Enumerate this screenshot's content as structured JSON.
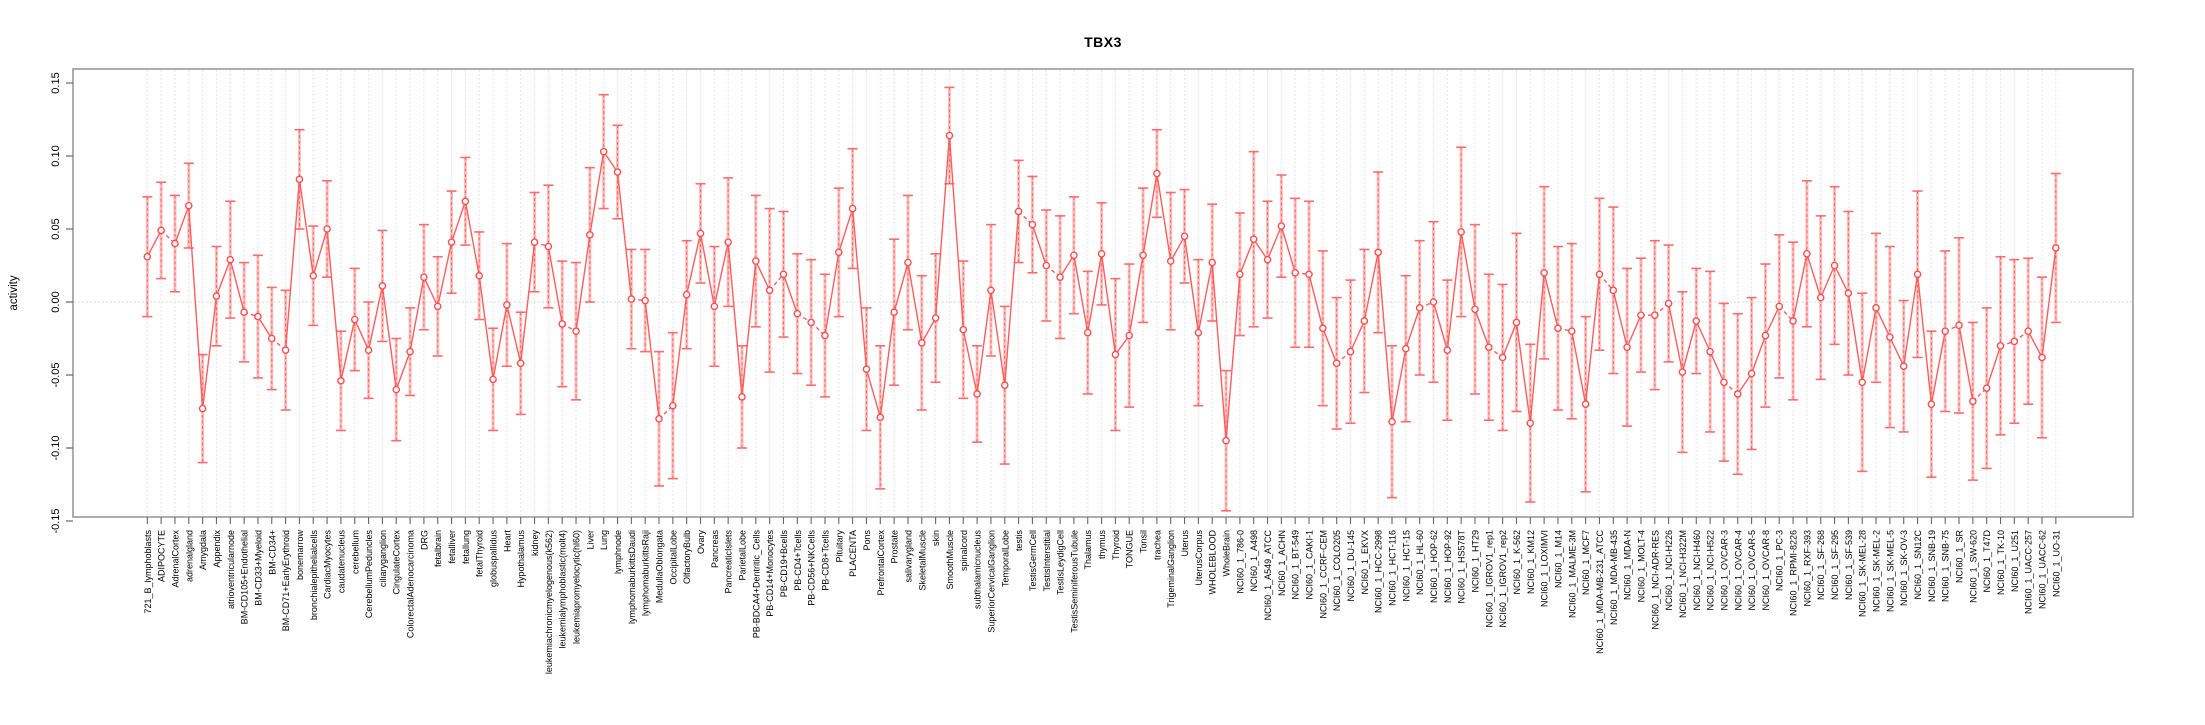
{
  "figure": {
    "background": "#ffffff"
  },
  "chart_data": {
    "type": "line",
    "title": "TBX3",
    "xlabel": "",
    "ylabel": "activity",
    "ylim": [
      -0.15,
      0.15
    ],
    "yticks": [
      -0.15,
      -0.1,
      -0.05,
      0.0,
      0.05,
      0.1,
      0.15
    ],
    "grid": "vertical dotted gridline per category; dotted horizontal line at 0",
    "legend_position": "none",
    "marker": "open-circle",
    "error_bars": true,
    "point_color": "#ff4d4d",
    "line_color": "#ff5c5c",
    "error_bar_color": "#ff8a8a",
    "cap_color": "#ff6b6b",
    "box_color": "#999999",
    "categories": [
      "721_B_lymphoblasts",
      "ADIPOCYTE",
      "AdrenalCortex",
      "adrenalgland",
      "Amygdala",
      "Appendix",
      "atrioventricularnode",
      "BM-CD105+Endothelial",
      "BM-CD33+Myeloid",
      "BM-CD34+",
      "BM-CD71+EarlyErythroid",
      "bonemarrow",
      "bronchialepithelialcells",
      "CardiacMyocytes",
      "caudatenucleus",
      "cerebellum",
      "CerebellumPeduncles",
      "ciliaryganglion",
      "CingulateCortex",
      "ColorectalAdenocarcinoma",
      "DRG",
      "fetalbrain",
      "fetalliver",
      "fetallung",
      "fetalThyroid",
      "globuspallidus",
      "Heart",
      "Hypothalamus",
      "kidney",
      "leukemiachronicmyelogenous(k562)",
      "leukemialymphoblastic(molt4)",
      "leukemiapromyelocytic(hl60)",
      "Liver",
      "Lung",
      "lymphnode",
      "lymphomaburkittsDaudi",
      "lymphomaburkittsRaji",
      "MedullaOblongata",
      "OccipitalLobe",
      "OlfactoryBulb",
      "Ovary",
      "Pancreas",
      "PancreaticIslets",
      "ParietalLobe",
      "PB-BDCA4+Dentritic_Cells",
      "PB-CD14+Monocytes",
      "PB-CD19+Bcells",
      "PB-CD4+Tcells",
      "PB-CD56+NKCells",
      "PB-CD8+Tcells",
      "Pituitary",
      "PLACENTA",
      "Pons",
      "PrefrontalCortex",
      "Prostate",
      "salivarygland",
      "SkeletalMuscle",
      "skin",
      "SmoothMuscle",
      "spinalcord",
      "subthalamicnucleus",
      "SuperiorCervicalGanglion",
      "TemporalLobe",
      "testis",
      "TestisGermCell",
      "TestisInterstitial",
      "TestisLeydigCell",
      "TestisSeminiferousTubule",
      "Thalamus",
      "thymus",
      "Thyroid",
      "TONGUE",
      "Tonsil",
      "trachea",
      "TrigeminalGanglion",
      "Uterus",
      "UterusCorpus",
      "WHOLEBLOOD",
      "WholeBrain",
      "NCI60_1_786-0",
      "NCI60_1_A498",
      "NCI60_1_A549_ATCC",
      "NCI60_1_ACHN",
      "NCI60_1_BT-549",
      "NCI60_1_CAKI-1",
      "NCI60_1_CCRF-CEM",
      "NCI60_1_COLO205",
      "NCI60_1_DU-145",
      "NCI60_1_EKVX",
      "NCI60_1_HCC-2998",
      "NCI60_1_HCT-116",
      "NCI60_1_HCT-15",
      "NCI60_1_HL-60",
      "NCI60_1_HOP-62",
      "NCI60_1_HOP-92",
      "NCI60_1_HS578T",
      "NCI60_1_HT29",
      "NCI60_1_IGROV1_rep1",
      "NCI60_1_IGROV1_rep2",
      "NCI60_1_K-562",
      "NCI60_1_KM12",
      "NCI60_1_LOXIMVI",
      "NCI60_1_M14",
      "NCI60_1_MALME-3M",
      "NCI60_1_MCF7",
      "NCI60_1_MDA-MB-231_ATCC",
      "NCI60_1_MDA-MB-435",
      "NCI60_1_MDA-N",
      "NCI60_1_MOLT-4",
      "NCI60_1_NCI-ADR-RES",
      "NCI60_1_NCI-H226",
      "NCI60_1_NCI-H322M",
      "NCI60_1_NCI-H460",
      "NCI60_1_NCI-H522",
      "NCI60_1_OVCAR-3",
      "NCI60_1_OVCAR-4",
      "NCI60_1_OVCAR-5",
      "NCI60_1_OVCAR-8",
      "NCI60_1_PC-3",
      "NCI60_1_RPMI-8226",
      "NCI60_1_RXF-393",
      "NCI60_1_SF-268",
      "NCI60_1_SF-295",
      "NCI60_1_SF-539",
      "NCI60_1_SK-MEL-28",
      "NCI60_1_SK-MEL-2",
      "NCI60_1_SK-MEL-5",
      "NCI60_1_SK-OV-3",
      "NCI60_1_SN12C",
      "NCI60_1_SNB-19",
      "NCI60_1_SNB-75",
      "NCI60_1_SR",
      "NCI60_1_SW-620",
      "NCI60_1_T47D",
      "NCI60_1_TK-10",
      "NCI60_1_U251",
      "NCI60_1_UACC-257",
      "NCI60_1_UACC-62",
      "NCI60_1_UO-31"
    ],
    "values": [
      0.031,
      0.049,
      0.04,
      0.066,
      -0.073,
      0.004,
      0.029,
      -0.007,
      -0.01,
      -0.025,
      -0.033,
      0.084,
      0.018,
      0.05,
      -0.054,
      -0.012,
      -0.033,
      0.011,
      -0.06,
      -0.034,
      0.017,
      -0.003,
      0.041,
      0.069,
      0.018,
      -0.053,
      -0.002,
      -0.042,
      0.041,
      0.038,
      -0.015,
      -0.02,
      0.046,
      0.103,
      0.089,
      0.002,
      0.001,
      -0.08,
      -0.071,
      0.005,
      0.047,
      -0.003,
      0.041,
      -0.065,
      0.028,
      0.008,
      0.019,
      -0.008,
      -0.014,
      -0.023,
      0.034,
      0.064,
      -0.046,
      -0.079,
      -0.007,
      0.027,
      -0.028,
      -0.011,
      0.114,
      -0.019,
      -0.063,
      0.008,
      -0.057,
      0.062,
      0.053,
      0.025,
      0.017,
      0.032,
      -0.021,
      0.033,
      -0.036,
      -0.023,
      0.032,
      0.088,
      0.028,
      0.045,
      -0.021,
      0.027,
      -0.095,
      0.019,
      0.043,
      0.029,
      0.052,
      0.02,
      0.019,
      -0.018,
      -0.042,
      -0.034,
      -0.013,
      0.034,
      -0.082,
      -0.032,
      -0.004,
      0.0,
      -0.033,
      0.048,
      -0.005,
      -0.031,
      -0.038,
      -0.014,
      -0.083,
      0.02,
      -0.018,
      -0.02,
      -0.07,
      0.019,
      0.008,
      -0.031,
      -0.009,
      -0.009,
      -0.001,
      -0.048,
      -0.013,
      -0.034,
      -0.055,
      -0.063,
      -0.049,
      -0.023,
      -0.003,
      -0.013,
      0.033,
      0.003,
      0.025,
      0.006,
      -0.055,
      -0.004,
      -0.024,
      -0.044,
      0.019,
      -0.07,
      -0.02,
      -0.016,
      -0.068,
      -0.059,
      -0.03,
      -0.027,
      -0.02,
      -0.038,
      0.037
    ],
    "errors": [
      0.041,
      0.033,
      0.033,
      0.029,
      0.037,
      0.034,
      0.04,
      0.034,
      0.042,
      0.035,
      0.041,
      0.034,
      0.034,
      0.033,
      0.034,
      0.035,
      0.033,
      0.038,
      0.035,
      0.03,
      0.036,
      0.034,
      0.035,
      0.03,
      0.03,
      0.035,
      0.042,
      0.035,
      0.034,
      0.042,
      0.043,
      0.047,
      0.046,
      0.039,
      0.032,
      0.034,
      0.035,
      0.046,
      0.05,
      0.037,
      0.034,
      0.041,
      0.044,
      0.035,
      0.045,
      0.056,
      0.043,
      0.041,
      0.043,
      0.042,
      0.044,
      0.041,
      0.042,
      0.049,
      0.05,
      0.046,
      0.046,
      0.044,
      0.033,
      0.047,
      0.033,
      0.045,
      0.054,
      0.035,
      0.033,
      0.038,
      0.042,
      0.04,
      0.042,
      0.035,
      0.052,
      0.049,
      0.046,
      0.03,
      0.047,
      0.032,
      0.05,
      0.04,
      0.048,
      0.042,
      0.06,
      0.04,
      0.035,
      0.051,
      0.05,
      0.053,
      0.045,
      0.049,
      0.049,
      0.055,
      0.052,
      0.05,
      0.046,
      0.055,
      0.048,
      0.058,
      0.058,
      0.05,
      0.05,
      0.061,
      0.054,
      0.059,
      0.056,
      0.06,
      0.06,
      0.052,
      0.057,
      0.054,
      0.039,
      0.051,
      0.04,
      0.055,
      0.036,
      0.055,
      0.054,
      0.055,
      0.052,
      0.049,
      0.049,
      0.054,
      0.05,
      0.056,
      0.054,
      0.056,
      0.061,
      0.051,
      0.062,
      0.045,
      0.057,
      0.05,
      0.055,
      0.06,
      0.054,
      0.055,
      0.061,
      0.056,
      0.05,
      0.055,
      0.051
    ]
  }
}
